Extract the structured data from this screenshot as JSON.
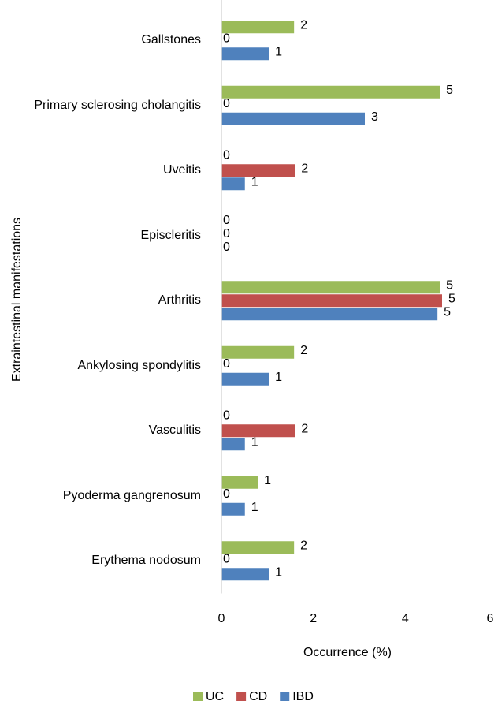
{
  "chart_data": {
    "type": "barh",
    "xlabel": "Occurrence (%)",
    "ylabel": "Extraintestinal manifestations",
    "categories": [
      "Gallstones",
      "Primary sclerosing cholangitis",
      "Uveitis",
      "Episcleritis",
      "Arthritis",
      "Ankylosing spondylitis",
      "Vasculitis",
      "Pyoderma gangrenosum",
      "Erythema nodosum"
    ],
    "series": [
      {
        "name": "UC",
        "color": "#9bbb59",
        "values": [
          1.58,
          4.75,
          0,
          0,
          4.75,
          1.58,
          0,
          0.79,
          1.58
        ],
        "value_labels": [
          "2",
          "5",
          "0",
          "0",
          "5",
          "2",
          "0",
          "1",
          "2"
        ]
      },
      {
        "name": "CD",
        "color": "#c0504d",
        "values": [
          0,
          0,
          1.6,
          0,
          4.8,
          0,
          1.6,
          0,
          0
        ],
        "value_labels": [
          "0",
          "0",
          "2",
          "0",
          "5",
          "0",
          "2",
          "0",
          "0"
        ]
      },
      {
        "name": "IBD",
        "color": "#4f81bd",
        "values": [
          1.03,
          3.12,
          0.51,
          0,
          4.7,
          1.03,
          0.51,
          0.51,
          1.03
        ],
        "value_labels": [
          "1",
          "3",
          "1",
          "0",
          "5",
          "1",
          "1",
          "1",
          "1"
        ]
      }
    ],
    "xlim": [
      0,
      6
    ],
    "xticks": [
      0,
      2,
      4,
      6
    ],
    "legend": "bottom"
  }
}
